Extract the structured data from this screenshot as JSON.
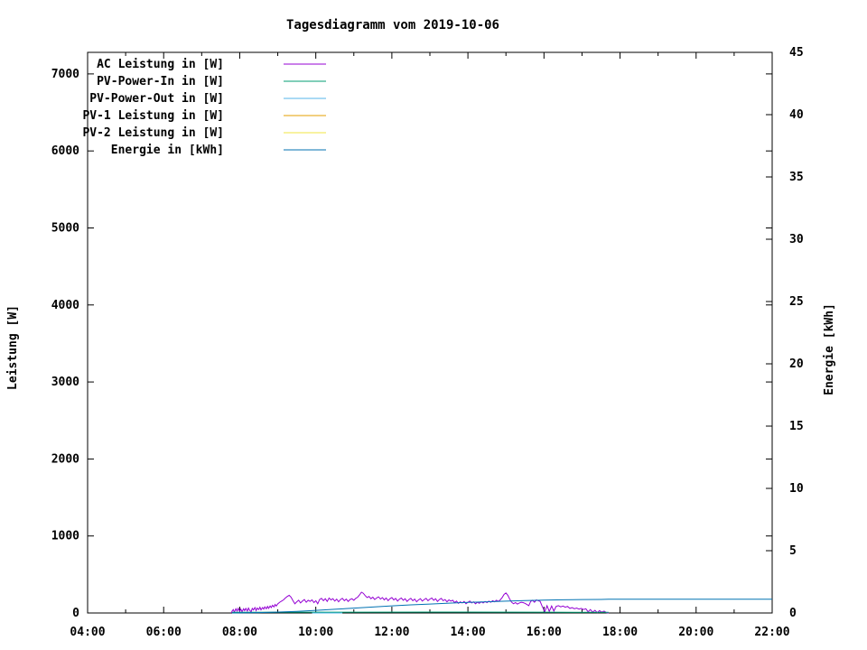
{
  "title": "Tagesdiagramm vom 2019-10-06",
  "axes": {
    "ylabel": "Leistung [W]",
    "y2label": "Energie [kWh]",
    "x_tick_labels": [
      "04:00",
      "06:00",
      "08:00",
      "10:00",
      "12:00",
      "14:00",
      "16:00",
      "18:00",
      "20:00",
      "22:00"
    ],
    "y_tick_labels": [
      "0",
      "1000",
      "2000",
      "3000",
      "4000",
      "5000",
      "6000",
      "7000"
    ],
    "y2_tick_labels": [
      "0",
      "5",
      "10",
      "15",
      "20",
      "25",
      "30",
      "35",
      "40",
      "45"
    ]
  },
  "chart_data": {
    "type": "line",
    "title": "Tagesdiagramm vom 2019-10-06",
    "xlabel": "",
    "ylabel": "Leistung [W]",
    "y2label": "Energie [kWh]",
    "x_range_hours": [
      4,
      22
    ],
    "x_major_tick_step_hours": 2,
    "x_minor_tick_step_hours": 1,
    "ylim": [
      0,
      7280
    ],
    "y_ticks": [
      0,
      1000,
      2000,
      3000,
      4000,
      5000,
      6000,
      7000
    ],
    "y2lim": [
      0,
      45
    ],
    "y2_ticks": [
      0,
      5,
      10,
      15,
      20,
      25,
      30,
      35,
      40,
      45
    ],
    "grid": false,
    "legend_position": "top-left",
    "background": "#ffffff",
    "axis_color": "#000000",
    "series": [
      {
        "name": "AC Leistung in [W]",
        "slug": "ac-leistung",
        "color": "#9400D3",
        "axis": "y1",
        "points": [
          [
            7.78,
            0
          ],
          [
            7.8,
            25
          ],
          [
            7.83,
            45
          ],
          [
            7.86,
            10
          ],
          [
            7.9,
            55
          ],
          [
            7.93,
            25
          ],
          [
            7.96,
            60
          ],
          [
            8.0,
            20
          ],
          [
            8.03,
            50
          ],
          [
            8.06,
            15
          ],
          [
            8.1,
            55
          ],
          [
            8.13,
            30
          ],
          [
            8.16,
            60
          ],
          [
            8.2,
            25
          ],
          [
            8.23,
            65
          ],
          [
            8.26,
            35
          ],
          [
            8.3,
            15
          ],
          [
            8.33,
            60
          ],
          [
            8.36,
            40
          ],
          [
            8.4,
            70
          ],
          [
            8.43,
            30
          ],
          [
            8.46,
            65
          ],
          [
            8.5,
            45
          ],
          [
            8.53,
            75
          ],
          [
            8.56,
            40
          ],
          [
            8.6,
            70
          ],
          [
            8.63,
            50
          ],
          [
            8.66,
            80
          ],
          [
            8.7,
            55
          ],
          [
            8.73,
            85
          ],
          [
            8.76,
            60
          ],
          [
            8.8,
            90
          ],
          [
            8.83,
            70
          ],
          [
            8.86,
            100
          ],
          [
            8.9,
            80
          ],
          [
            8.93,
            110
          ],
          [
            8.96,
            90
          ],
          [
            9.0,
            120
          ],
          [
            9.05,
            140
          ],
          [
            9.1,
            155
          ],
          [
            9.15,
            170
          ],
          [
            9.2,
            195
          ],
          [
            9.25,
            215
          ],
          [
            9.3,
            230
          ],
          [
            9.35,
            205
          ],
          [
            9.4,
            160
          ],
          [
            9.45,
            120
          ],
          [
            9.5,
            145
          ],
          [
            9.55,
            165
          ],
          [
            9.6,
            130
          ],
          [
            9.65,
            155
          ],
          [
            9.7,
            175
          ],
          [
            9.75,
            140
          ],
          [
            9.8,
            165
          ],
          [
            9.85,
            150
          ],
          [
            9.9,
            170
          ],
          [
            9.95,
            135
          ],
          [
            10.0,
            160
          ],
          [
            10.05,
            120
          ],
          [
            10.1,
            175
          ],
          [
            10.15,
            190
          ],
          [
            10.2,
            160
          ],
          [
            10.25,
            185
          ],
          [
            10.3,
            150
          ],
          [
            10.35,
            195
          ],
          [
            10.4,
            170
          ],
          [
            10.45,
            185
          ],
          [
            10.5,
            155
          ],
          [
            10.55,
            180
          ],
          [
            10.6,
            145
          ],
          [
            10.65,
            175
          ],
          [
            10.7,
            190
          ],
          [
            10.75,
            160
          ],
          [
            10.8,
            180
          ],
          [
            10.85,
            150
          ],
          [
            10.9,
            175
          ],
          [
            10.95,
            185
          ],
          [
            11.0,
            165
          ],
          [
            11.05,
            190
          ],
          [
            11.1,
            205
          ],
          [
            11.15,
            235
          ],
          [
            11.2,
            270
          ],
          [
            11.25,
            255
          ],
          [
            11.3,
            225
          ],
          [
            11.35,
            200
          ],
          [
            11.4,
            215
          ],
          [
            11.45,
            185
          ],
          [
            11.5,
            205
          ],
          [
            11.55,
            175
          ],
          [
            11.6,
            195
          ],
          [
            11.65,
            210
          ],
          [
            11.7,
            180
          ],
          [
            11.75,
            200
          ],
          [
            11.8,
            170
          ],
          [
            11.85,
            195
          ],
          [
            11.9,
            160
          ],
          [
            11.95,
            185
          ],
          [
            12.0,
            200
          ],
          [
            12.05,
            170
          ],
          [
            12.1,
            190
          ],
          [
            12.15,
            155
          ],
          [
            12.2,
            180
          ],
          [
            12.25,
            195
          ],
          [
            12.3,
            165
          ],
          [
            12.35,
            185
          ],
          [
            12.4,
            150
          ],
          [
            12.45,
            175
          ],
          [
            12.5,
            190
          ],
          [
            12.55,
            160
          ],
          [
            12.6,
            180
          ],
          [
            12.65,
            145
          ],
          [
            12.7,
            170
          ],
          [
            12.75,
            185
          ],
          [
            12.8,
            155
          ],
          [
            12.85,
            175
          ],
          [
            12.9,
            190
          ],
          [
            12.95,
            160
          ],
          [
            13.0,
            180
          ],
          [
            13.05,
            195
          ],
          [
            13.1,
            165
          ],
          [
            13.15,
            185
          ],
          [
            13.2,
            150
          ],
          [
            13.25,
            175
          ],
          [
            13.3,
            190
          ],
          [
            13.35,
            160
          ],
          [
            13.4,
            175
          ],
          [
            13.45,
            145
          ],
          [
            13.5,
            170
          ],
          [
            13.55,
            155
          ],
          [
            13.6,
            165
          ],
          [
            13.65,
            135
          ],
          [
            13.7,
            155
          ],
          [
            13.75,
            125
          ],
          [
            13.8,
            145
          ],
          [
            13.85,
            130
          ],
          [
            13.9,
            150
          ],
          [
            13.95,
            120
          ],
          [
            14.0,
            140
          ],
          [
            14.05,
            155
          ],
          [
            14.1,
            130
          ],
          [
            14.15,
            145
          ],
          [
            14.2,
            120
          ],
          [
            14.25,
            140
          ],
          [
            14.3,
            125
          ],
          [
            14.35,
            145
          ],
          [
            14.4,
            130
          ],
          [
            14.45,
            150
          ],
          [
            14.5,
            135
          ],
          [
            14.55,
            155
          ],
          [
            14.6,
            140
          ],
          [
            14.65,
            160
          ],
          [
            14.7,
            145
          ],
          [
            14.75,
            165
          ],
          [
            14.8,
            150
          ],
          [
            14.85,
            170
          ],
          [
            14.9,
            200
          ],
          [
            14.95,
            240
          ],
          [
            15.0,
            260
          ],
          [
            15.05,
            230
          ],
          [
            15.1,
            180
          ],
          [
            15.15,
            140
          ],
          [
            15.2,
            120
          ],
          [
            15.25,
            135
          ],
          [
            15.3,
            115
          ],
          [
            15.35,
            130
          ],
          [
            15.4,
            140
          ],
          [
            15.45,
            135
          ],
          [
            15.5,
            125
          ],
          [
            15.55,
            110
          ],
          [
            15.6,
            95
          ],
          [
            15.65,
            150
          ],
          [
            15.7,
            165
          ],
          [
            15.75,
            140
          ],
          [
            15.8,
            170
          ],
          [
            15.85,
            160
          ],
          [
            15.9,
            150
          ],
          [
            15.95,
            90
          ],
          [
            16.02,
            15
          ],
          [
            16.08,
            95
          ],
          [
            16.14,
            20
          ],
          [
            16.2,
            90
          ],
          [
            16.26,
            25
          ],
          [
            16.32,
            85
          ],
          [
            16.38,
            95
          ],
          [
            16.44,
            80
          ],
          [
            16.5,
            90
          ],
          [
            16.56,
            75
          ],
          [
            16.62,
            85
          ],
          [
            16.68,
            60
          ],
          [
            16.74,
            70
          ],
          [
            16.8,
            55
          ],
          [
            16.86,
            65
          ],
          [
            16.92,
            50
          ],
          [
            16.98,
            60
          ],
          [
            17.04,
            45
          ],
          [
            17.1,
            55
          ],
          [
            17.16,
            15
          ],
          [
            17.22,
            45
          ],
          [
            17.28,
            10
          ],
          [
            17.34,
            35
          ],
          [
            17.4,
            5
          ],
          [
            17.46,
            30
          ],
          [
            17.52,
            10
          ],
          [
            17.58,
            25
          ],
          [
            17.64,
            5
          ],
          [
            17.7,
            0
          ]
        ]
      },
      {
        "name": "PV-Power-In in [W]",
        "slug": "pv-power-in",
        "color": "#009E73",
        "axis": "y1",
        "points": [
          [
            7.8,
            8
          ],
          [
            10.0,
            10
          ],
          [
            13.0,
            12
          ],
          [
            16.0,
            10
          ],
          [
            17.7,
            8
          ]
        ]
      },
      {
        "name": "PV-Power-Out in [W]",
        "slug": "pv-power-out",
        "color": "#56B4E9",
        "axis": "y1",
        "points": [
          [
            9.9,
            0
          ],
          [
            10.7,
            0
          ]
        ]
      },
      {
        "name": "PV-1 Leistung in [W]",
        "slug": "pv-1-leistung",
        "color": "#E69F00",
        "axis": "y1",
        "points": []
      },
      {
        "name": "PV-2 Leistung in [W]",
        "slug": "pv-2-leistung",
        "color": "#F0E442",
        "axis": "y1",
        "points": []
      },
      {
        "name": "Energie in [kWh]",
        "slug": "energie",
        "color": "#0072B2",
        "axis": "y2",
        "points": [
          [
            7.8,
            0
          ],
          [
            8.0,
            0.01
          ],
          [
            8.5,
            0.03
          ],
          [
            9.0,
            0.07
          ],
          [
            9.5,
            0.13
          ],
          [
            10.0,
            0.21
          ],
          [
            10.5,
            0.3
          ],
          [
            11.0,
            0.39
          ],
          [
            11.5,
            0.48
          ],
          [
            12.0,
            0.57
          ],
          [
            12.5,
            0.65
          ],
          [
            13.0,
            0.72
          ],
          [
            13.5,
            0.79
          ],
          [
            14.0,
            0.85
          ],
          [
            14.5,
            0.9
          ],
          [
            15.0,
            0.95
          ],
          [
            15.5,
            0.99
          ],
          [
            16.0,
            1.03
          ],
          [
            16.5,
            1.06
          ],
          [
            17.0,
            1.08
          ],
          [
            17.5,
            1.09
          ],
          [
            17.7,
            1.1
          ],
          [
            22.0,
            1.1
          ]
        ]
      }
    ]
  }
}
